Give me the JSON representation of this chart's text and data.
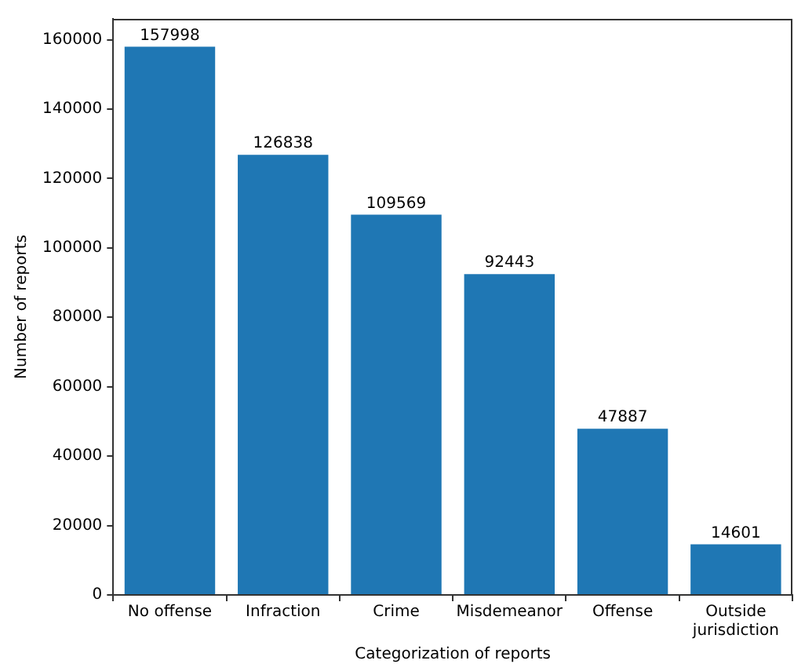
{
  "chart_data": {
    "type": "bar",
    "xlabel": "Categorization of reports",
    "ylabel": "Number of reports",
    "categories": [
      "No offense",
      "Infraction",
      "Crime",
      "Misdemeanor",
      "Offense",
      "Outside\njurisdiction"
    ],
    "values": [
      157998,
      126838,
      109569,
      92443,
      47887,
      14601
    ],
    "color": "#1f77b4",
    "ylim": [
      0,
      166000
    ],
    "yticks": [
      0,
      20000,
      40000,
      60000,
      80000,
      100000,
      120000,
      140000,
      160000
    ],
    "grid": false,
    "legend": false,
    "data_labels": true
  }
}
